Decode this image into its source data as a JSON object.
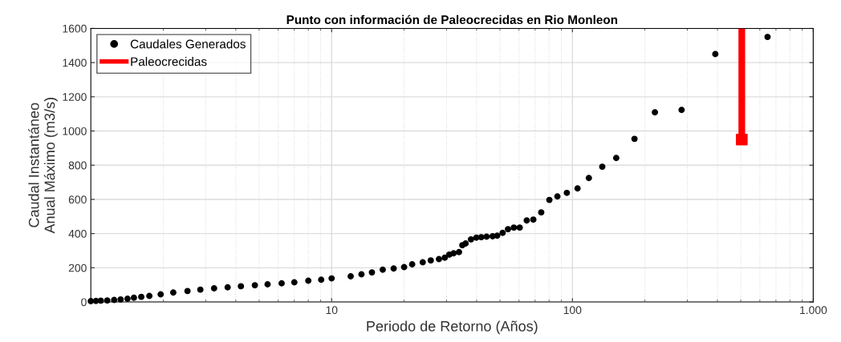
{
  "chart_data": {
    "type": "scatter",
    "title": "Punto con información de Paleocrecidas en Rio Monleon",
    "xlabel": "Periodo de Retorno (Años)",
    "ylabel": "Caudal Instantáneo\nAnual Máximo (m3/s)",
    "log": "x",
    "xlim": [
      1,
      1000
    ],
    "xticks": [
      10,
      100,
      {
        "value": 1000,
        "label": "1.000"
      }
    ],
    "ylim": [
      0,
      1600
    ],
    "yticks": [
      0,
      200,
      400,
      600,
      800,
      1000,
      1200,
      1400,
      1600
    ],
    "grid": true,
    "legend": "top left",
    "series": [
      {
        "name": "Caudales Generados",
        "color": "#000000",
        "marker": "circle",
        "x": [
          1.0,
          1.05,
          1.1,
          1.17,
          1.25,
          1.33,
          1.42,
          1.51,
          1.62,
          1.75,
          1.95,
          2.2,
          2.52,
          2.85,
          3.25,
          3.7,
          4.2,
          4.8,
          5.42,
          6.2,
          7.0,
          8.0,
          9.05,
          10,
          12,
          13.3,
          14.7,
          16.3,
          18.1,
          20,
          21.6,
          23.9,
          25.8,
          27.9,
          29.5,
          30.8,
          32.1,
          33.8,
          34.9,
          36,
          37.9,
          39.9,
          41.8,
          44,
          46.6,
          48.7,
          51.3,
          54,
          57.1,
          60.4,
          64.6,
          68.8,
          74.2,
          80.2,
          86.6,
          94.8,
          105,
          117,
          133,
          152,
          181,
          220,
          284,
          392,
          646
        ],
        "values": [
          5,
          6,
          8,
          9,
          12,
          15,
          19,
          25,
          30,
          35,
          45,
          55,
          64,
          72,
          80,
          86,
          92,
          98,
          103,
          109,
          115,
          124,
          130,
          138,
          150,
          162,
          173,
          189,
          196,
          204,
          220,
          232,
          243,
          251,
          259,
          277,
          285,
          292,
          332,
          342,
          366,
          376,
          379,
          382,
          384,
          388,
          404,
          426,
          435,
          435,
          477,
          482,
          524,
          597,
          617,
          638,
          664,
          725,
          791,
          842,
          954,
          1109,
          1123,
          1450,
          1550
        ]
      },
      {
        "name": "Paleocrecidas",
        "color": "#ff0000",
        "marker": "square",
        "x": [
          505
        ],
        "values": [
          950
        ],
        "errors": [
          [
            950,
            1600
          ]
        ]
      }
    ]
  }
}
